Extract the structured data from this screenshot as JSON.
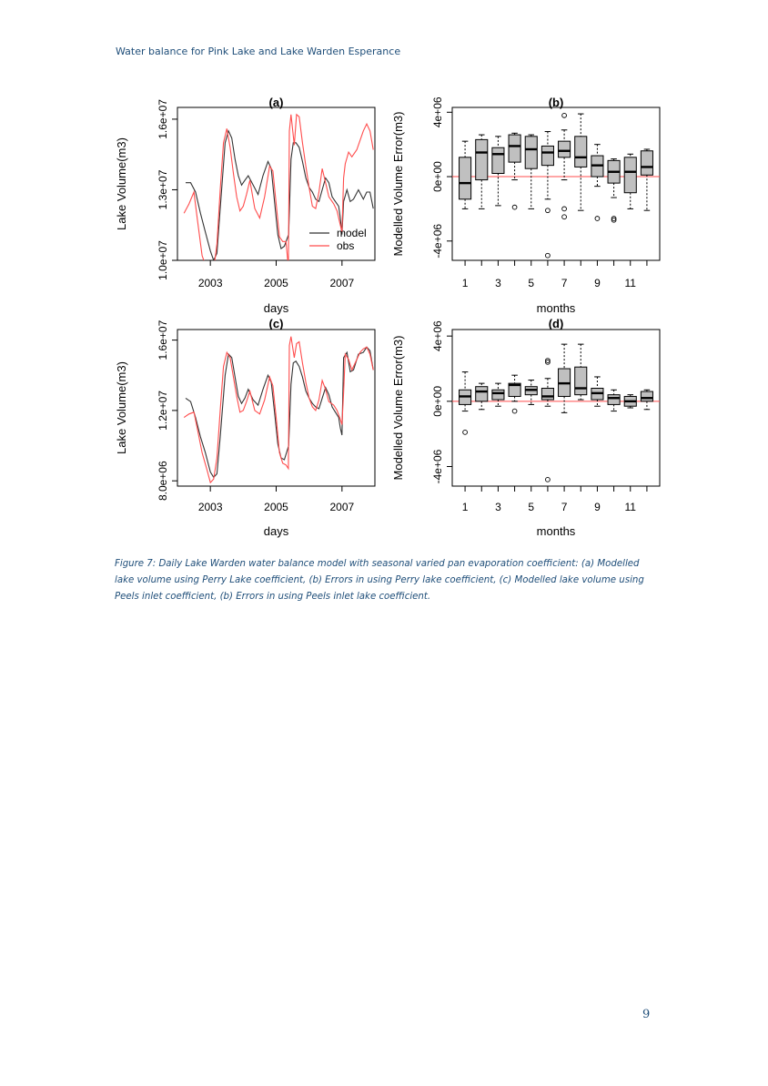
{
  "header": {
    "title": "Water balance for Pink Lake and Lake Warden Esperance"
  },
  "legend": {
    "model": "model",
    "obs": "obs"
  },
  "colors": {
    "model": "#333333",
    "obs": "#ff4c4c",
    "box_fill": "#c0c0c0",
    "zero_line": "#ff4c4c",
    "text": "#1f4e79"
  },
  "chart_data": [
    {
      "panel": "(a)",
      "type": "line",
      "xlabel": "days",
      "ylabel": "Lake Volume(m3)",
      "xlim": [
        2002.0,
        2008.0
      ],
      "ylim": [
        10000000.0,
        16500000.0
      ],
      "xticks": [
        2003,
        2005,
        2007
      ],
      "xtick_labels": [
        "2003",
        "2005",
        "2007"
      ],
      "yticks": [
        10000000.0,
        13000000.0,
        16000000.0
      ],
      "ytick_labels": [
        "1.0e+07",
        "1.3e+07",
        "1.6e+07"
      ],
      "legend_position": "bottom-right",
      "series": [
        {
          "name": "model",
          "x": [
            2002.25,
            2002.4,
            2002.55,
            2002.7,
            2002.85,
            2003.0,
            2003.1,
            2003.2,
            2003.3,
            2003.45,
            2003.55,
            2003.65,
            2003.75,
            2003.85,
            2003.95,
            2004.05,
            2004.15,
            2004.3,
            2004.45,
            2004.6,
            2004.75,
            2004.85,
            2004.95,
            2005.05,
            2005.15,
            2005.25,
            2005.38,
            2005.45,
            2005.52,
            2005.6,
            2005.7,
            2005.8,
            2005.9,
            2006.0,
            2006.1,
            2006.2,
            2006.3,
            2006.4,
            2006.5,
            2006.6,
            2006.7,
            2006.8,
            2006.9,
            2006.95,
            2007.0,
            2007.05,
            2007.15,
            2007.25,
            2007.35,
            2007.5,
            2007.65,
            2007.75,
            2007.85,
            2007.95
          ],
          "y": [
            13.3,
            13.3,
            12.9,
            12.0,
            11.2,
            10.4,
            10.0,
            10.3,
            12.2,
            15.0,
            15.5,
            15.2,
            14.3,
            13.6,
            13.2,
            13.4,
            13.6,
            13.2,
            12.8,
            13.6,
            14.2,
            13.9,
            12.5,
            11.1,
            10.5,
            10.6,
            11.1,
            14.3,
            15.0,
            15.0,
            14.8,
            14.2,
            13.5,
            13.1,
            12.9,
            12.6,
            12.5,
            13.0,
            13.5,
            13.3,
            12.7,
            12.5,
            12.3,
            11.8,
            11.1,
            12.5,
            13.0,
            12.5,
            12.6,
            13.0,
            12.6,
            12.9,
            12.9,
            12.2
          ]
        },
        {
          "name": "obs",
          "x": [
            2002.2,
            2002.35,
            2002.5,
            2002.6,
            2002.75,
            2002.9,
            2003.0,
            2003.1,
            2003.2,
            2003.3,
            2003.4,
            2003.5,
            2003.6,
            2003.7,
            2003.8,
            2003.9,
            2004.0,
            2004.1,
            2004.2,
            2004.35,
            2004.5,
            2004.65,
            2004.8,
            2004.9,
            2005.0,
            2005.1,
            2005.2,
            2005.3,
            2005.37,
            2005.4,
            2005.45,
            2005.55,
            2005.62,
            2005.7,
            2005.8,
            2005.9,
            2006.0,
            2006.1,
            2006.2,
            2006.3,
            2006.4,
            2006.5,
            2006.6,
            2006.75,
            2006.85,
            2006.95,
            2007.0,
            2007.05,
            2007.1,
            2007.2,
            2007.3,
            2007.45,
            2007.55,
            2007.65,
            2007.75,
            2007.85,
            2007.95
          ],
          "y": [
            12.0,
            12.4,
            12.9,
            11.8,
            10.2,
            9.6,
            9.2,
            9.6,
            10.7,
            13.0,
            15.0,
            15.6,
            14.8,
            13.7,
            12.7,
            12.1,
            12.3,
            12.8,
            13.4,
            12.2,
            11.8,
            12.7,
            14.0,
            13.8,
            12.4,
            11.0,
            10.8,
            10.8,
            9.7,
            15.5,
            16.2,
            14.9,
            16.2,
            16.1,
            15.0,
            14.0,
            13.1,
            12.3,
            12.2,
            12.9,
            13.9,
            13.3,
            12.7,
            12.4,
            12.1,
            11.5,
            11.2,
            13.5,
            14.1,
            14.6,
            14.4,
            14.7,
            15.1,
            15.5,
            15.8,
            15.5,
            14.7
          ]
        }
      ]
    },
    {
      "panel": "(b)",
      "type": "box",
      "xlabel": "months",
      "ylabel": "Modelled Volume Error(m3)",
      "ylim": [
        -5200000.0,
        4300000.0
      ],
      "xtick_labels": [
        "1",
        "3",
        "5",
        "7",
        "9",
        "11"
      ],
      "yticks": [
        -4000000.0,
        0,
        4000000.0
      ],
      "ytick_labels": [
        "-4e+06",
        "0e+00",
        "4e+06"
      ],
      "categories": [
        "1",
        "2",
        "3",
        "4",
        "5",
        "6",
        "7",
        "8",
        "9",
        "10",
        "11",
        "12"
      ],
      "boxes": [
        {
          "min": -2000000.0,
          "q1": -1400000.0,
          "median": -400000.0,
          "q3": 1200000.0,
          "max": 2200000.0,
          "outliers": []
        },
        {
          "min": -2000000.0,
          "q1": -200000.0,
          "median": 1500000.0,
          "q3": 2300000.0,
          "max": 2600000.0,
          "outliers": []
        },
        {
          "min": -1800000.0,
          "q1": 200000.0,
          "median": 1400000.0,
          "q3": 1800000.0,
          "max": 2500000.0,
          "outliers": []
        },
        {
          "min": -200000.0,
          "q1": 900000.0,
          "median": 1900000.0,
          "q3": 2600000.0,
          "max": 2700000.0,
          "outliers": [
            -1900000.0
          ]
        },
        {
          "min": -2000000.0,
          "q1": 500000.0,
          "median": 1700000.0,
          "q3": 2500000.0,
          "max": 2600000.0,
          "outliers": []
        },
        {
          "min": -1400000.0,
          "q1": 700000.0,
          "median": 1500000.0,
          "q3": 1900000.0,
          "max": 2800000.0,
          "outliers": [
            -2100000.0,
            -4900000.0
          ]
        },
        {
          "min": -200000.0,
          "q1": 1200000.0,
          "median": 1600000.0,
          "q3": 2200000.0,
          "max": 2900000.0,
          "outliers": [
            3800000.0,
            -2000000.0,
            -2500000.0
          ]
        },
        {
          "min": -2100000.0,
          "q1": 600000.0,
          "median": 1200000.0,
          "q3": 2500000.0,
          "max": 3900000.0,
          "outliers": []
        },
        {
          "min": -600000.0,
          "q1": 0.0,
          "median": 700000.0,
          "q3": 1300000.0,
          "max": 2000000.0,
          "outliers": [
            -2600000.0
          ]
        },
        {
          "min": -1300000.0,
          "q1": -400000.0,
          "median": 300000.0,
          "q3": 1000000.0,
          "max": 1100000.0,
          "outliers": [
            -2600000.0,
            -2700000.0
          ]
        },
        {
          "min": -2000000.0,
          "q1": -1000000.0,
          "median": 300000.0,
          "q3": 1200000.0,
          "max": 1400000.0,
          "outliers": []
        },
        {
          "min": -2100000.0,
          "q1": 100000.0,
          "median": 600000.0,
          "q3": 1600000.0,
          "max": 1700000.0,
          "outliers": []
        }
      ]
    },
    {
      "panel": "(c)",
      "type": "line",
      "xlabel": "days",
      "ylabel": "Lake Volume(m3)",
      "xlim": [
        2002.0,
        2008.0
      ],
      "ylim": [
        7700000.0,
        16600000.0
      ],
      "xticks": [
        2003,
        2005,
        2007
      ],
      "xtick_labels": [
        "2003",
        "2005",
        "2007"
      ],
      "yticks": [
        8000000.0,
        12000000.0,
        16000000.0
      ],
      "ytick_labels": [
        "8.0e+06",
        "1.2e+07",
        "1.6e+07"
      ],
      "series": [
        {
          "name": "model",
          "x": [
            2002.25,
            2002.4,
            2002.55,
            2002.7,
            2002.85,
            2003.0,
            2003.1,
            2003.2,
            2003.3,
            2003.45,
            2003.55,
            2003.65,
            2003.75,
            2003.85,
            2003.95,
            2004.05,
            2004.15,
            2004.3,
            2004.45,
            2004.6,
            2004.75,
            2004.85,
            2004.95,
            2005.05,
            2005.15,
            2005.25,
            2005.38,
            2005.45,
            2005.52,
            2005.6,
            2005.7,
            2005.8,
            2005.9,
            2006.0,
            2006.1,
            2006.2,
            2006.3,
            2006.4,
            2006.5,
            2006.6,
            2006.7,
            2006.8,
            2006.9,
            2006.95,
            2007.0,
            2007.05,
            2007.15,
            2007.25,
            2007.35,
            2007.5,
            2007.65,
            2007.75,
            2007.85,
            2007.95
          ],
          "y": [
            12.7,
            12.5,
            11.6,
            10.5,
            9.6,
            8.5,
            8.2,
            8.4,
            10.5,
            14.0,
            15.2,
            15.0,
            13.9,
            12.8,
            12.4,
            12.7,
            13.2,
            12.6,
            12.3,
            13.2,
            14.0,
            13.6,
            11.9,
            10.1,
            9.3,
            9.2,
            10.0,
            13.5,
            14.7,
            14.8,
            14.5,
            13.9,
            13.1,
            12.7,
            12.4,
            12.2,
            12.1,
            12.7,
            13.3,
            12.9,
            12.2,
            11.9,
            11.6,
            11.0,
            10.6,
            15.0,
            15.3,
            14.2,
            14.3,
            15.2,
            15.3,
            15.6,
            15.4,
            14.3
          ]
        },
        {
          "name": "obs",
          "x": [
            2002.2,
            2002.35,
            2002.5,
            2002.6,
            2002.75,
            2002.9,
            2003.0,
            2003.1,
            2003.2,
            2003.3,
            2003.4,
            2003.5,
            2003.6,
            2003.7,
            2003.8,
            2003.9,
            2004.0,
            2004.1,
            2004.2,
            2004.35,
            2004.5,
            2004.65,
            2004.8,
            2004.9,
            2005.0,
            2005.1,
            2005.2,
            2005.3,
            2005.37,
            2005.4,
            2005.45,
            2005.55,
            2005.62,
            2005.7,
            2005.8,
            2005.9,
            2006.0,
            2006.1,
            2006.2,
            2006.3,
            2006.4,
            2006.5,
            2006.6,
            2006.75,
            2006.85,
            2006.95,
            2007.0,
            2007.05,
            2007.1,
            2007.2,
            2007.3,
            2007.45,
            2007.55,
            2007.65,
            2007.75,
            2007.85,
            2007.95
          ],
          "y": [
            11.6,
            11.8,
            11.9,
            11.0,
            9.6,
            8.6,
            7.9,
            8.1,
            9.3,
            12.0,
            14.5,
            15.3,
            15.0,
            13.9,
            12.8,
            11.9,
            12.0,
            12.5,
            13.1,
            12.0,
            11.8,
            12.6,
            13.9,
            13.4,
            11.6,
            9.6,
            9.0,
            8.9,
            8.7,
            15.7,
            16.2,
            15.0,
            15.8,
            15.9,
            14.7,
            13.6,
            12.7,
            12.2,
            12.0,
            12.6,
            13.7,
            13.2,
            12.5,
            12.3,
            12.0,
            11.5,
            11.2,
            13.0,
            15.2,
            14.9,
            14.3,
            14.9,
            15.3,
            15.5,
            15.6,
            15.2,
            14.3
          ]
        }
      ]
    },
    {
      "panel": "(d)",
      "type": "box",
      "xlabel": "months",
      "ylabel": "Modelled Volume Error(m3)",
      "ylim": [
        -5200000.0,
        4400000.0
      ],
      "xtick_labels": [
        "1",
        "3",
        "5",
        "7",
        "9",
        "11"
      ],
      "yticks": [
        -4000000.0,
        0,
        4000000.0
      ],
      "ytick_labels": [
        "-4e+06",
        "0e+00",
        "4e+06"
      ],
      "categories": [
        "1",
        "2",
        "3",
        "4",
        "5",
        "6",
        "7",
        "8",
        "9",
        "10",
        "11",
        "12"
      ],
      "boxes": [
        {
          "min": -600000.0,
          "q1": -200000.0,
          "median": 300000.0,
          "q3": 700000.0,
          "max": 1800000.0,
          "outliers": [
            -1900000.0
          ]
        },
        {
          "min": -500000.0,
          "q1": 0.0,
          "median": 600000.0,
          "q3": 900000.0,
          "max": 1100000.0,
          "outliers": []
        },
        {
          "min": -300000.0,
          "q1": 100000.0,
          "median": 500000.0,
          "q3": 700000.0,
          "max": 1100000.0,
          "outliers": []
        },
        {
          "min": 0.0,
          "q1": 300000.0,
          "median": 1000000.0,
          "q3": 1100000.0,
          "max": 1600000.0,
          "outliers": [
            -600000.0
          ]
        },
        {
          "min": -200000.0,
          "q1": 400000.0,
          "median": 700000.0,
          "q3": 900000.0,
          "max": 1300000.0,
          "outliers": []
        },
        {
          "min": -300000.0,
          "q1": 100000.0,
          "median": 300000.0,
          "q3": 800000.0,
          "max": 1400000.0,
          "outliers": [
            2400000.0,
            2500000.0,
            -4800000.0
          ]
        },
        {
          "min": -700000.0,
          "q1": 300000.0,
          "median": 1100000.0,
          "q3": 2000000.0,
          "max": 3500000.0,
          "outliers": []
        },
        {
          "min": 100000.0,
          "q1": 400000.0,
          "median": 800000.0,
          "q3": 2100000.0,
          "max": 3500000.0,
          "outliers": []
        },
        {
          "min": -300000.0,
          "q1": 100000.0,
          "median": 500000.0,
          "q3": 800000.0,
          "max": 1500000.0,
          "outliers": []
        },
        {
          "min": -600000.0,
          "q1": -200000.0,
          "median": 200000.0,
          "q3": 400000.0,
          "max": 700000.0,
          "outliers": []
        },
        {
          "min": -400000.0,
          "q1": -300000.0,
          "median": 0.0,
          "q3": 300000.0,
          "max": 400000.0,
          "outliers": []
        },
        {
          "min": -500000.0,
          "q1": 0.0,
          "median": 200000.0,
          "q3": 600000.0,
          "max": 700000.0,
          "outliers": []
        }
      ]
    }
  ],
  "caption": "Figure 7: Daily Lake Warden water balance model with seasonal varied pan evaporation coefficient: (a) Modelled lake volume using Perry Lake coefficient, (b) Errors in using Perry lake coefficient, (c)  Modelled lake volume  using Peels  inlet coefficient, (b) Errors in using Peels inlet lake coefficient.",
  "page_number": "9"
}
